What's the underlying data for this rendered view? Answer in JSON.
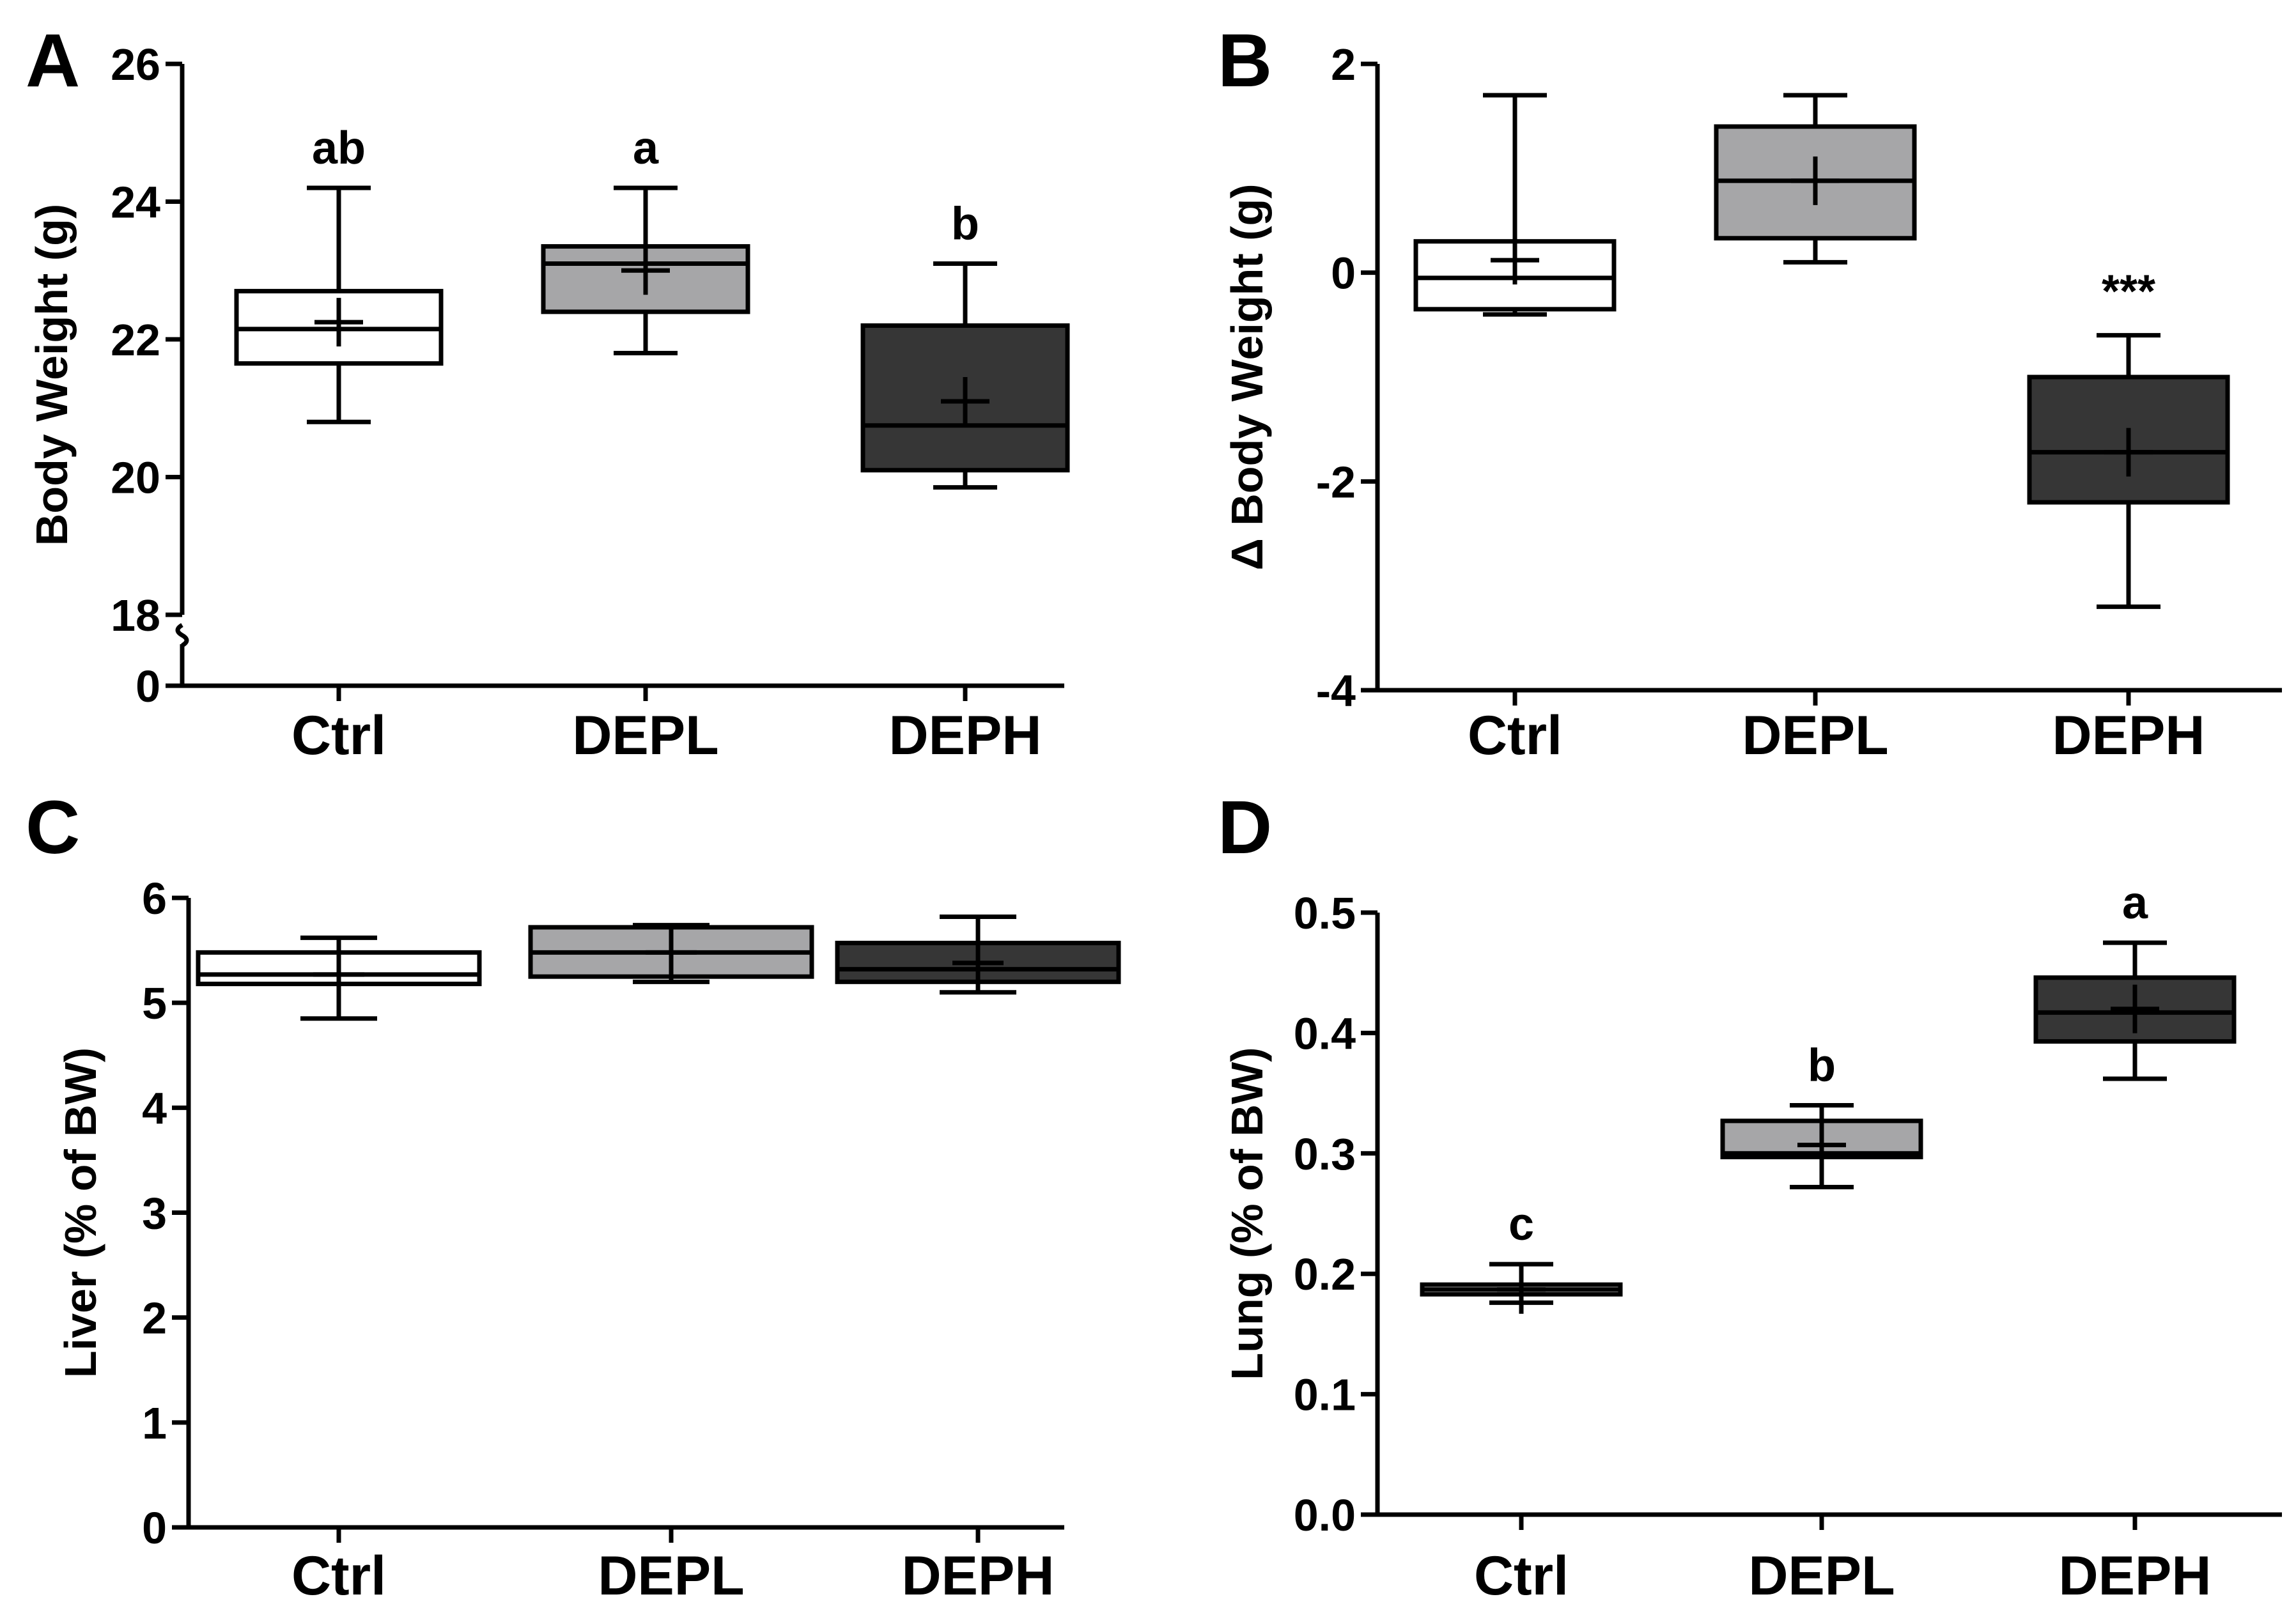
{
  "figure": {
    "background": "#ffffff",
    "ink_color": "#000000"
  },
  "chart_data": [
    {
      "panel": "A",
      "type": "boxplot",
      "ylabel": "Body Weight (g)",
      "categories": [
        "Ctrl",
        "DEPL",
        "DEPH"
      ],
      "axis_break": {
        "lower_ticks": [
          "0"
        ],
        "break_between": [
          0,
          18
        ]
      },
      "ylim": [
        18,
        26
      ],
      "yticks": [
        18,
        20,
        22,
        24,
        26
      ],
      "boxes": [
        {
          "name": "Ctrl",
          "min": 20.8,
          "q1": 21.65,
          "median": 22.15,
          "q3": 22.7,
          "max": 24.2,
          "mean": 22.25,
          "fill": "#ffffff",
          "sig": "ab"
        },
        {
          "name": "DEPL",
          "min": 21.8,
          "q1": 22.4,
          "median": 23.1,
          "q3": 23.35,
          "max": 24.2,
          "mean": 23.0,
          "fill": "#a6a6a8",
          "sig": "a"
        },
        {
          "name": "DEPH",
          "min": 19.85,
          "q1": 20.1,
          "median": 20.75,
          "q3": 22.2,
          "max": 23.1,
          "mean": 21.1,
          "fill": "#363636",
          "sig": "b"
        }
      ]
    },
    {
      "panel": "B",
      "type": "boxplot",
      "ylabel": "Δ Body Weight (g)",
      "categories": [
        "Ctrl",
        "DEPL",
        "DEPH"
      ],
      "ylim": [
        -4,
        2
      ],
      "yticks": [
        -4,
        -2,
        0,
        2
      ],
      "boxes": [
        {
          "name": "Ctrl",
          "min": -0.4,
          "q1": -0.35,
          "median": -0.05,
          "q3": 0.3,
          "max": 1.7,
          "mean": 0.12,
          "fill": "#ffffff",
          "sig": ""
        },
        {
          "name": "DEPL",
          "min": 0.1,
          "q1": 0.33,
          "median": 0.88,
          "q3": 1.4,
          "max": 1.7,
          "mean": 0.88,
          "fill": "#a6a6a8",
          "sig": ""
        },
        {
          "name": "DEPH",
          "min": -3.2,
          "q1": -2.2,
          "median": -1.72,
          "q3": -1.0,
          "max": -0.6,
          "mean": -1.72,
          "fill": "#363636",
          "sig": "***"
        }
      ]
    },
    {
      "panel": "C",
      "type": "boxplot",
      "ylabel": "Liver (% of BW)",
      "categories": [
        "Ctrl",
        "DEPL",
        "DEPH"
      ],
      "ylim": [
        0,
        6
      ],
      "yticks": [
        0,
        1,
        2,
        3,
        4,
        5,
        6
      ],
      "boxes": [
        {
          "name": "Ctrl",
          "min": 4.85,
          "q1": 5.18,
          "median": 5.27,
          "q3": 5.48,
          "max": 5.62,
          "mean": 5.27,
          "fill": "#ffffff",
          "sig": ""
        },
        {
          "name": "DEPL",
          "min": 5.2,
          "q1": 5.25,
          "median": 5.48,
          "q3": 5.72,
          "max": 5.74,
          "mean": 5.48,
          "fill": "#a6a6a8",
          "sig": ""
        },
        {
          "name": "DEPH",
          "min": 5.1,
          "q1": 5.2,
          "median": 5.32,
          "q3": 5.57,
          "max": 5.82,
          "mean": 5.38,
          "fill": "#363636",
          "sig": ""
        }
      ]
    },
    {
      "panel": "D",
      "type": "boxplot",
      "ylabel": "Lung (% of BW)",
      "categories": [
        "Ctrl",
        "DEPL",
        "DEPH"
      ],
      "ylim": [
        0.0,
        0.5
      ],
      "yticks": [
        "0.0",
        "0.1",
        "0.2",
        "0.3",
        "0.4",
        "0.5"
      ],
      "boxes": [
        {
          "name": "Ctrl",
          "min": 0.176,
          "q1": 0.183,
          "median": 0.187,
          "q3": 0.191,
          "max": 0.208,
          "mean": 0.187,
          "fill": "#ffffff",
          "sig": "c"
        },
        {
          "name": "DEPL",
          "min": 0.272,
          "q1": 0.297,
          "median": 0.3,
          "q3": 0.327,
          "max": 0.34,
          "mean": 0.307,
          "fill": "#a6a6a8",
          "sig": "b"
        },
        {
          "name": "DEPH",
          "min": 0.362,
          "q1": 0.393,
          "median": 0.417,
          "q3": 0.446,
          "max": 0.475,
          "mean": 0.42,
          "fill": "#363636",
          "sig": "a"
        }
      ]
    }
  ]
}
